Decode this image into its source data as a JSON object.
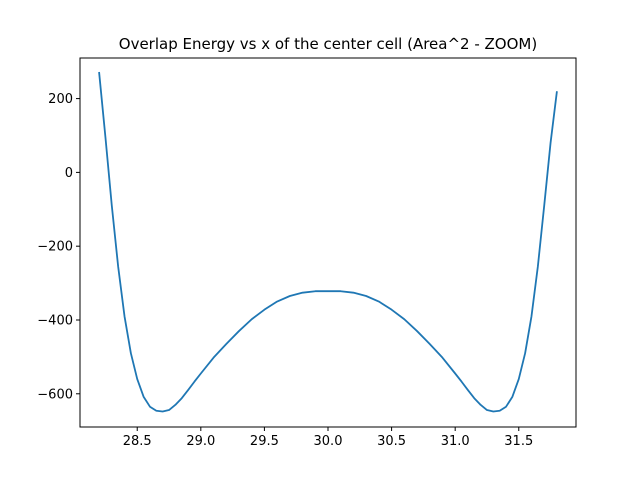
{
  "chart_data": {
    "type": "line",
    "title": "Overlap Energy vs x of the center cell (Area^2 - ZOOM)",
    "xlabel": "",
    "ylabel": "",
    "xlim": [
      28.05,
      31.95
    ],
    "ylim": [
      -690,
      310
    ],
    "x_ticks": [
      28.5,
      29.0,
      29.5,
      30.0,
      30.5,
      31.0,
      31.5
    ],
    "x_tick_labels": [
      "28.5",
      "29.0",
      "29.5",
      "30.0",
      "30.5",
      "31.0",
      "31.5"
    ],
    "y_ticks": [
      200,
      0,
      -200,
      -400,
      -600
    ],
    "y_tick_labels": [
      "200",
      "0",
      "−200",
      "−400",
      "−600"
    ],
    "grid": false,
    "line_color": "#1f77b4",
    "series": [
      {
        "x": [
          28.2,
          28.25,
          28.3,
          28.35,
          28.4,
          28.45,
          28.5,
          28.55,
          28.6,
          28.65,
          28.7,
          28.75,
          28.8,
          28.85,
          28.9,
          28.95,
          29.0,
          29.1,
          29.2,
          29.3,
          29.4,
          29.5,
          29.6,
          29.7,
          29.8,
          29.9,
          30.0,
          30.1,
          30.2,
          30.3,
          30.4,
          30.5,
          30.6,
          30.7,
          30.8,
          30.9,
          31.0,
          31.05,
          31.1,
          31.15,
          31.2,
          31.25,
          31.3,
          31.35,
          31.4,
          31.45,
          31.5,
          31.55,
          31.6,
          31.65,
          31.7,
          31.75,
          31.8
        ],
        "y": [
          272,
          95,
          -90,
          -255,
          -390,
          -490,
          -560,
          -608,
          -635,
          -646,
          -648,
          -644,
          -630,
          -612,
          -590,
          -567,
          -545,
          -502,
          -465,
          -430,
          -398,
          -372,
          -350,
          -335,
          -326,
          -322,
          -322,
          -322,
          -326,
          -335,
          -350,
          -372,
          -398,
          -430,
          -465,
          -502,
          -545,
          -567,
          -590,
          -612,
          -630,
          -644,
          -648,
          -646,
          -635,
          -608,
          -560,
          -490,
          -390,
          -255,
          -90,
          80,
          220
        ]
      }
    ]
  }
}
